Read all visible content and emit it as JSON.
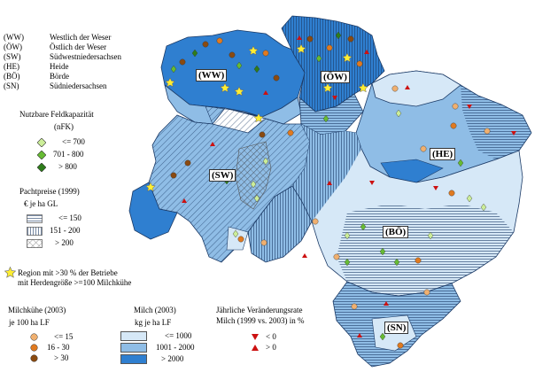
{
  "regions_legend": [
    {
      "code": "(WW)",
      "name": "Westlich der Weser"
    },
    {
      "code": "(ÖW)",
      "name": "Östlich der Weser"
    },
    {
      "code": "(SW)",
      "name": "Südwestniedersachsen"
    },
    {
      "code": "(HE)",
      "name": "Heide"
    },
    {
      "code": "(BÖ)",
      "name": "Börde"
    },
    {
      "code": "(SN)",
      "name": "Südniedersachsen"
    }
  ],
  "region_labels": [
    "(WW)",
    "(ÖW)",
    "(SW)",
    "(HE)",
    "(BÖ)",
    "(SN)"
  ],
  "nfk": {
    "title": "Nutzbare Feldkapazität",
    "unit": "(nFK)",
    "items": [
      {
        "label": "<= 700",
        "color": "#ccee99"
      },
      {
        "label": "701 -  800",
        "color": "#66bb33"
      },
      {
        "label": ">  800",
        "color": "#2e7d1a"
      }
    ]
  },
  "pacht": {
    "title": "Pachtpreise (1999)",
    "unit": "€ je ha GL",
    "items": [
      {
        "label": "<= 150"
      },
      {
        "label": "151 -  200"
      },
      {
        "label": ">  200"
      }
    ]
  },
  "herd": {
    "line1": "Region mit >30 % der Betriebe",
    "line2": "mit Herdengröße >=100 Milchkühe",
    "color": "#ffee33"
  },
  "cows": {
    "title": "Milchkühe (2003)",
    "unit": "je 100 ha LF",
    "items": [
      {
        "label": "<= 15",
        "color": "#f0b070"
      },
      {
        "label": "16  -  30",
        "color": "#e07a20"
      },
      {
        "label": ">  30",
        "color": "#8a4a10"
      }
    ]
  },
  "milk": {
    "title": "Milch (2003)",
    "unit": "kg je ha LF",
    "items": [
      {
        "label": "<= 1000",
        "color": "#d6e8f7"
      },
      {
        "label": "1001 -  2000",
        "color": "#8fbde6"
      },
      {
        "label": ">  2000",
        "color": "#2f7fd0"
      }
    ]
  },
  "change": {
    "title1": "Jährliche Veränderungsrate",
    "title2": "Milch (1999 vs. 2003) in %",
    "items": [
      {
        "label": "< 0",
        "color": "#cc1111"
      },
      {
        "label": "> 0",
        "color": "#cc1111"
      }
    ]
  }
}
